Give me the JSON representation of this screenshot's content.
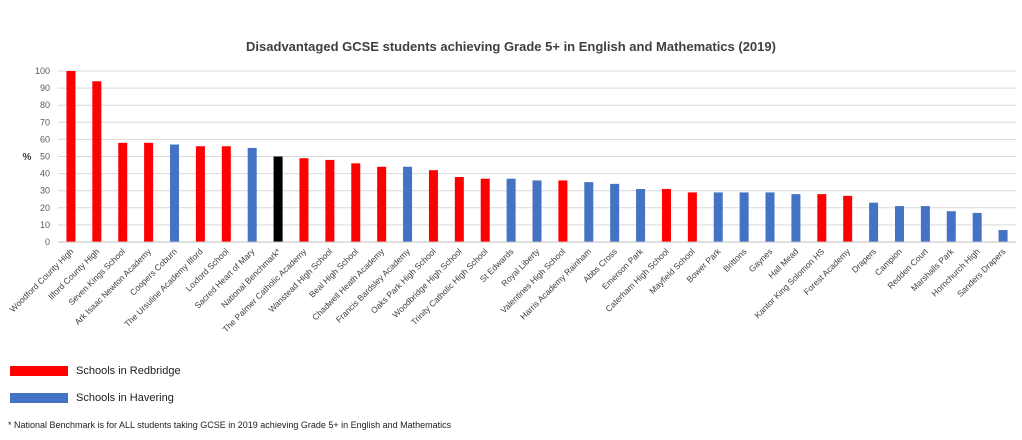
{
  "chart_data": {
    "type": "bar",
    "title": "Disadvantaged GCSE students achieving Grade 5+ in English and Mathematics (2019)",
    "ylabel": "%",
    "xlabel": "",
    "ylim": [
      0,
      100
    ],
    "yticks": [
      0,
      10,
      20,
      30,
      40,
      50,
      60,
      70,
      80,
      90,
      100
    ],
    "grid": true,
    "categories": [
      "Woodford County High",
      "Ilford County High",
      "Seven Kings School",
      "Ark Isaac Newton Academy",
      "Coopers Coburn",
      "The Ursuline Academy Ilford",
      "Loxford School",
      "Sacred Heart of Mary",
      "National Benchmark*",
      "The Palmer Catholic Academy",
      "Wanstead High School",
      "Beal High School",
      "Chadwell Heath Academy",
      "Francis Bardsley Academy",
      "Oaks Park High School",
      "Woodbridge High School",
      "Trinity Catholic High School",
      "St Edwards",
      "Royal Liberty",
      "Valentines High School",
      "Harris Academy Rainham",
      "Abbs Cross",
      "Emerson Park",
      "Caterham High School",
      "Mayfield School",
      "Bower Park",
      "Brittons",
      "Gaynes",
      "Hall Mead",
      "Kantor King Solomon HS",
      "Forest Academy",
      "Drapers",
      "Campion",
      "Redden Court",
      "Marshalls Park",
      "Hornchurch High",
      "Sanders Drapers"
    ],
    "values": [
      100,
      94,
      58,
      58,
      57,
      56,
      56,
      55,
      50,
      49,
      48,
      46,
      44,
      44,
      42,
      38,
      37,
      37,
      36,
      36,
      35,
      34,
      31,
      31,
      29,
      29,
      29,
      29,
      28,
      28,
      27,
      23,
      21,
      21,
      18,
      17,
      7
    ],
    "groups": [
      "R",
      "R",
      "R",
      "R",
      "H",
      "R",
      "R",
      "H",
      "N",
      "R",
      "R",
      "R",
      "R",
      "H",
      "R",
      "R",
      "R",
      "H",
      "H",
      "R",
      "H",
      "H",
      "H",
      "R",
      "R",
      "H",
      "H",
      "H",
      "H",
      "R",
      "R",
      "H",
      "H",
      "H",
      "H",
      "H",
      "H"
    ],
    "colors": {
      "R": "#ff0000",
      "H": "#4472c4",
      "N": "#000000",
      "grid": "#d9d9d9"
    },
    "legend": [
      {
        "name": "Schools in Redbridge",
        "color": "#ff0000"
      },
      {
        "name": "Schools in Havering",
        "color": "#4472c4"
      }
    ]
  },
  "footnote": "* National Benchmark is for ALL students taking GCSE in 2019 achieving Grade 5+ in English and Mathematics"
}
